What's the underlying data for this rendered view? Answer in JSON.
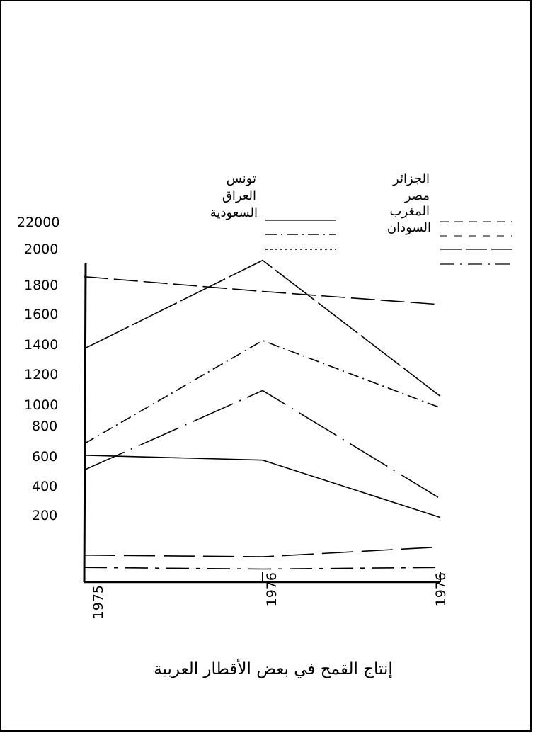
{
  "chart_data": {
    "type": "line",
    "title": "إنتاج القمح في بعض الأقطار العربية",
    "categories": [
      "1975",
      "1976",
      "1976"
    ],
    "y_tick_labels": [
      "22000",
      "2000",
      "1800",
      "1600",
      "1400",
      "1200",
      "1000",
      "800",
      "600",
      "400",
      "200"
    ],
    "legend": {
      "left_group": [
        "تونس",
        "العراق",
        "السعودية"
      ],
      "right_group": [
        "الجزائر",
        "مصر",
        "المغرب",
        "السودان"
      ]
    },
    "grid": false,
    "series": [
      {
        "values": [
          1770,
          1680,
          1600
        ],
        "dash": "34 8"
      },
      {
        "values": [
          1330,
          1870,
          1040
        ],
        "dash": "70 6"
      },
      {
        "values": [
          750,
          1380,
          970
        ],
        "dash": "16 6 2 6"
      },
      {
        "values": [
          590,
          1075,
          415
        ],
        "dash": "62 10 2 10"
      },
      {
        "values": [
          680,
          650,
          300
        ],
        "dash": "none"
      },
      {
        "values": [
          70,
          60,
          120
        ],
        "dash": "44 12"
      },
      {
        "values": [
          -5,
          -15,
          -5
        ],
        "dash": "32 10 6 10"
      }
    ]
  }
}
